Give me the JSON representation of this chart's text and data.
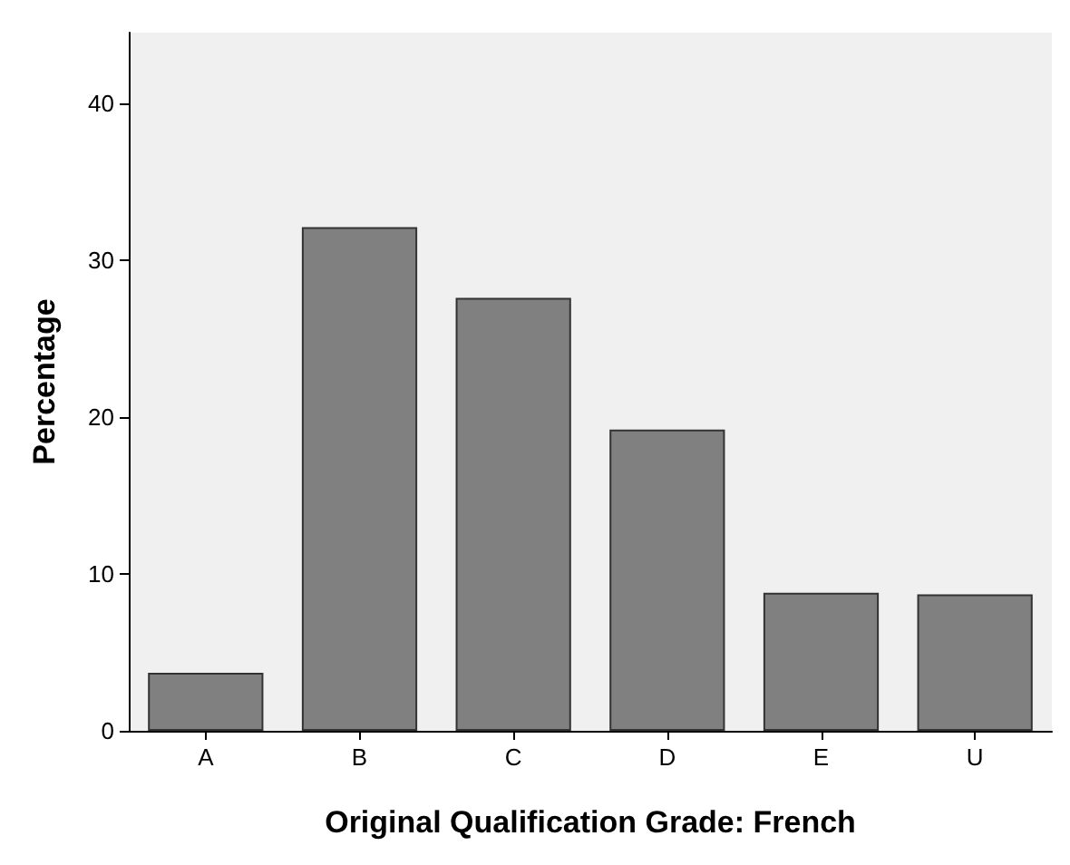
{
  "chart_data": {
    "type": "bar",
    "xlabel": "Original Qualification Grade: French",
    "ylabel": "Percentage",
    "categories": [
      "A",
      "B",
      "C",
      "D",
      "E",
      "U"
    ],
    "values": [
      3.7,
      32.1,
      27.6,
      19.2,
      8.8,
      8.7
    ],
    "color": "#808080",
    "ylim": [
      0,
      44.5
    ],
    "yticks": [
      0,
      10,
      20,
      30,
      40
    ],
    "grid": false
  }
}
